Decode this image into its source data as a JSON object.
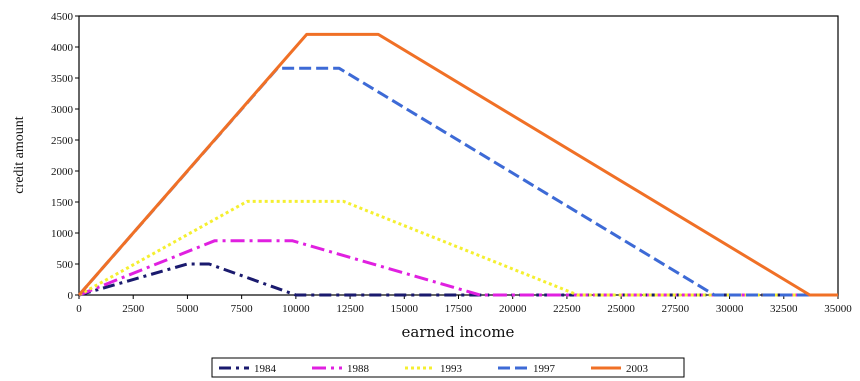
{
  "chart_data": {
    "type": "line",
    "xlabel": "earned income",
    "ylabel": "credit amount",
    "xlim": [
      0,
      35000
    ],
    "ylim": [
      0,
      4500
    ],
    "x_ticks": [
      "0",
      "2500",
      "5000",
      "7500",
      "10000",
      "12500",
      "15000",
      "17500",
      "20000",
      "22500",
      "25000",
      "27500",
      "30000",
      "32500",
      "35000"
    ],
    "y_ticks": [
      "0",
      "500",
      "1000",
      "1500",
      "2000",
      "2500",
      "3000",
      "3500",
      "4000",
      "4500"
    ],
    "grid": false,
    "legend_position": "bottom",
    "series": [
      {
        "name": "1984",
        "color": "#1a1a6e",
        "dash": "long-short-dash",
        "points": [
          [
            0,
            0
          ],
          [
            5000,
            500
          ],
          [
            6000,
            500
          ],
          [
            10000,
            0
          ],
          [
            35000,
            0
          ]
        ]
      },
      {
        "name": "1988",
        "color": "#e020e0",
        "dash": "dash-dot",
        "points": [
          [
            0,
            0
          ],
          [
            6250,
            874
          ],
          [
            9850,
            874
          ],
          [
            18500,
            0
          ],
          [
            35000,
            0
          ]
        ]
      },
      {
        "name": "1993",
        "color": "#f5ef30",
        "dash": "dotted",
        "points": [
          [
            0,
            0
          ],
          [
            7750,
            1510
          ],
          [
            12200,
            1510
          ],
          [
            23000,
            0
          ],
          [
            35000,
            0
          ]
        ]
      },
      {
        "name": "1997",
        "color": "#3d6ad6",
        "dash": "dashed",
        "points": [
          [
            0,
            0
          ],
          [
            9150,
            3656
          ],
          [
            12000,
            3656
          ],
          [
            29300,
            0
          ],
          [
            35000,
            0
          ]
        ]
      },
      {
        "name": "2003",
        "color": "#f07026",
        "dash": "solid",
        "points": [
          [
            0,
            0
          ],
          [
            10500,
            4204
          ],
          [
            13800,
            4204
          ],
          [
            33700,
            0
          ],
          [
            35000,
            0
          ]
        ]
      }
    ]
  }
}
